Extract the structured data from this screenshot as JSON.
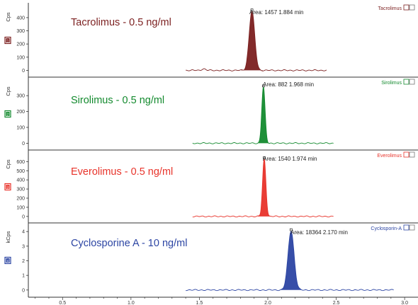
{
  "x_axis": {
    "ticks": [
      "0.5",
      "1.0",
      "1.5",
      "2.0",
      "2.5",
      "3.0"
    ],
    "tick_values": [
      0.5,
      1.0,
      1.5,
      2.0,
      2.5,
      3.0
    ],
    "range": [
      0.25,
      3.02
    ]
  },
  "chart_data": [
    {
      "type": "line",
      "title": "Tacrolimus - 0.5 ng/ml",
      "legend": "Tacrolimus",
      "panel_number": "1",
      "ylabel": "Cps",
      "yticks": [
        0,
        100,
        200,
        300,
        400
      ],
      "ylim": [
        -30,
        480
      ],
      "color": "#7b1f1f",
      "annotation": "Area: 1457  1.884 min",
      "peak": {
        "rt": 1.884,
        "height": 450,
        "area": 1457
      },
      "baseline_range": [
        1.4,
        2.43
      ]
    },
    {
      "type": "line",
      "title": "Sirolimus - 0.5 ng/ml",
      "legend": "Sirolimus",
      "panel_number": "2",
      "ylabel": "Cps",
      "yticks": [
        0,
        100,
        200,
        300
      ],
      "ylim": [
        -25,
        390
      ],
      "color": "#138a2e",
      "annotation": "Area: 882  1.968 min",
      "peak": {
        "rt": 1.968,
        "height": 355,
        "area": 882
      },
      "baseline_range": [
        1.45,
        2.48
      ]
    },
    {
      "type": "line",
      "title": "Everolimus - 0.5 ng/ml",
      "legend": "Everolimus",
      "panel_number": "3",
      "ylabel": "Cps",
      "yticks": [
        0,
        100,
        200,
        300,
        400,
        500,
        600
      ],
      "ylim": [
        -40,
        680
      ],
      "color": "#e8332a",
      "annotation": "Area: 1540  1.974 min",
      "peak": {
        "rt": 1.974,
        "height": 630,
        "area": 1540
      },
      "baseline_range": [
        1.45,
        2.48
      ]
    },
    {
      "type": "line",
      "title": "Cyclosporine A - 10 ng/ml",
      "legend": "Cyclosporin-A",
      "panel_number": "4",
      "ylabel": "kCps",
      "yticks": [
        0,
        1,
        2,
        3,
        4
      ],
      "ylim": [
        -0.3,
        4.3
      ],
      "color": "#2c45a3",
      "annotation": "Area: 18364  2.170 min",
      "peak": {
        "rt": 2.17,
        "height": 4.05,
        "area": 18364
      },
      "baseline_range": [
        1.4,
        2.92
      ]
    }
  ]
}
